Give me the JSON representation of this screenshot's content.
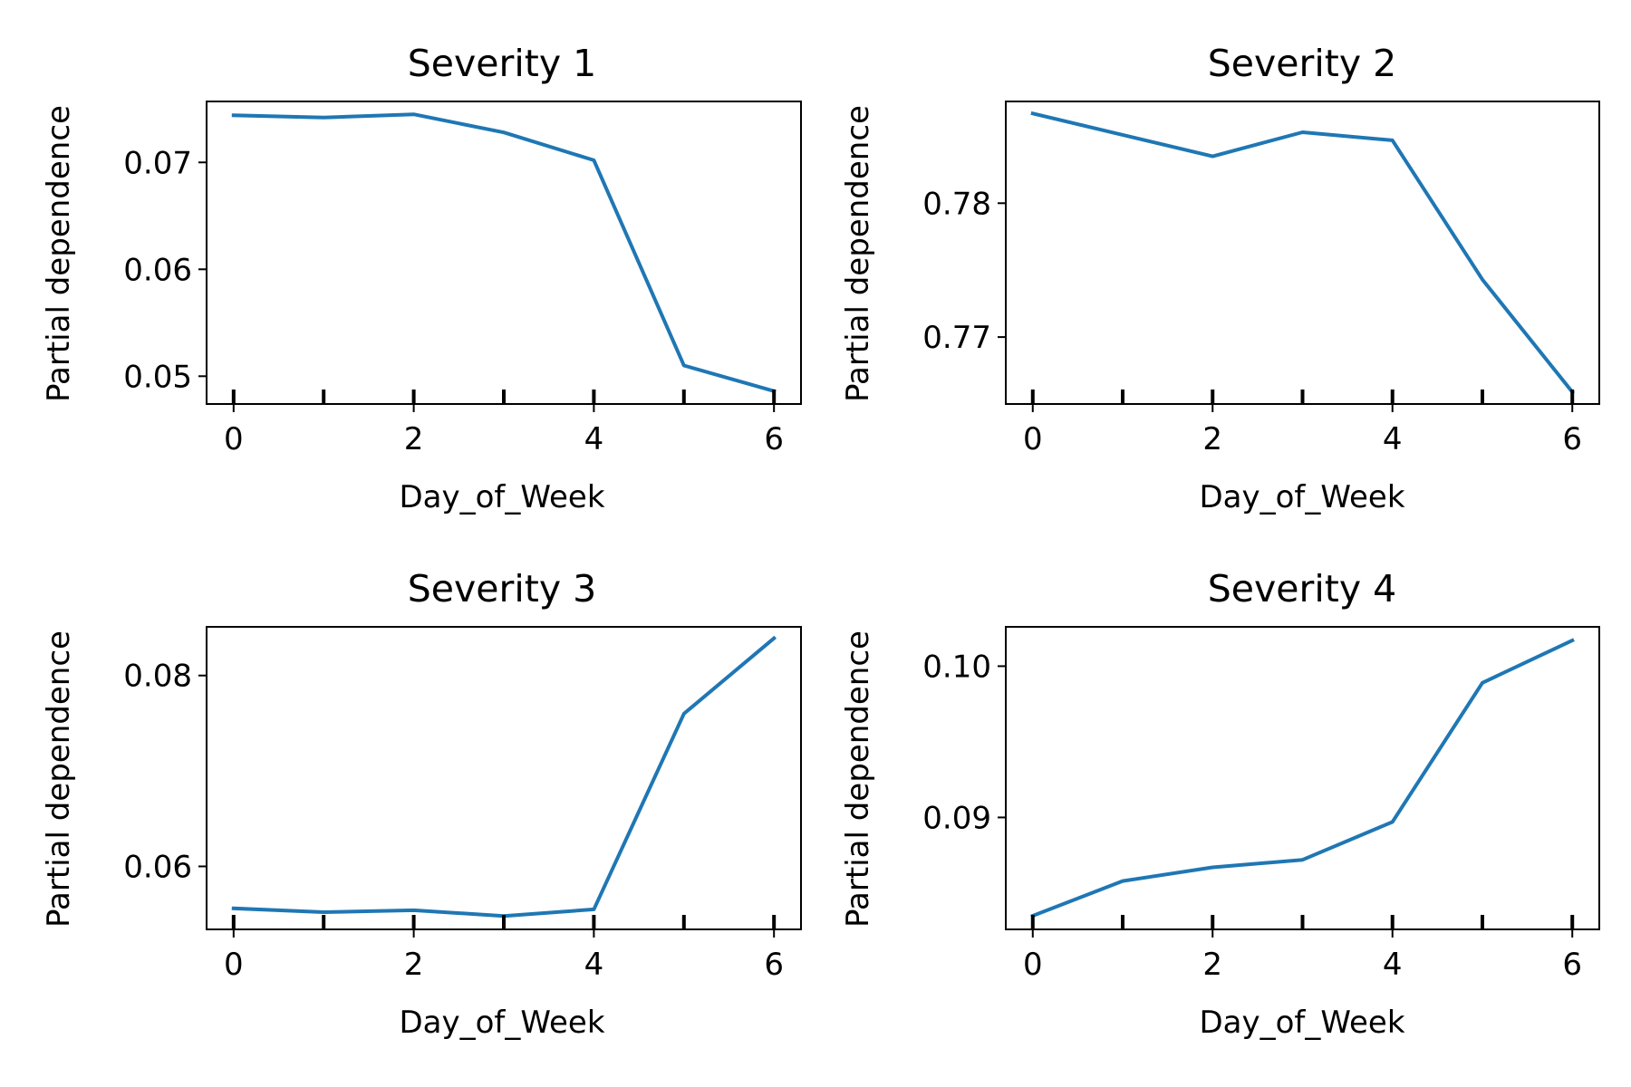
{
  "chart_data": [
    {
      "type": "line",
      "title": "Severity 1",
      "xlabel": "Day_of_Week",
      "ylabel": "Partial dependence",
      "x": [
        0,
        1,
        2,
        3,
        4,
        5,
        6
      ],
      "y": [
        0.0744,
        0.0742,
        0.0745,
        0.0728,
        0.0702,
        0.051,
        0.0486
      ],
      "xlim": [
        -0.3,
        6.3
      ],
      "ylim": [
        0.0474,
        0.0757
      ],
      "xticks": [
        0,
        2,
        4,
        6
      ],
      "xtick_labels": [
        "0",
        "2",
        "4",
        "6"
      ],
      "yticks": [
        0.05,
        0.06,
        0.07
      ],
      "ytick_labels": [
        "0.05",
        "0.06",
        "0.07"
      ],
      "rug": [
        0,
        1,
        2,
        3,
        4,
        5,
        6
      ],
      "color": "#1f77b4",
      "grid": false
    },
    {
      "type": "line",
      "title": "Severity 2",
      "xlabel": "Day_of_Week",
      "ylabel": "Partial dependence",
      "x": [
        0,
        1,
        2,
        3,
        4,
        5,
        6
      ],
      "y": [
        0.7867,
        0.7851,
        0.7835,
        0.7853,
        0.7847,
        0.7743,
        0.7659
      ],
      "xlim": [
        -0.3,
        6.3
      ],
      "ylim": [
        0.765,
        0.7876
      ],
      "xticks": [
        0,
        2,
        4,
        6
      ],
      "xtick_labels": [
        "0",
        "2",
        "4",
        "6"
      ],
      "yticks": [
        0.77,
        0.78
      ],
      "ytick_labels": [
        "0.77",
        "0.78"
      ],
      "rug": [
        0,
        1,
        2,
        3,
        4,
        5,
        6
      ],
      "color": "#1f77b4",
      "grid": false
    },
    {
      "type": "line",
      "title": "Severity 3",
      "xlabel": "Day_of_Week",
      "ylabel": "Partial dependence",
      "x": [
        0,
        1,
        2,
        3,
        4,
        5,
        6
      ],
      "y": [
        0.0556,
        0.0552,
        0.0554,
        0.0548,
        0.0555,
        0.076,
        0.0839
      ],
      "xlim": [
        -0.3,
        6.3
      ],
      "ylim": [
        0.0534,
        0.0851
      ],
      "xticks": [
        0,
        2,
        4,
        6
      ],
      "xtick_labels": [
        "0",
        "2",
        "4",
        "6"
      ],
      "yticks": [
        0.06,
        0.08
      ],
      "ytick_labels": [
        "0.06",
        "0.08"
      ],
      "rug": [
        0,
        1,
        2,
        3,
        4,
        5,
        6
      ],
      "color": "#1f77b4",
      "grid": false
    },
    {
      "type": "line",
      "title": "Severity 4",
      "xlabel": "Day_of_Week",
      "ylabel": "Partial dependence",
      "x": [
        0,
        1,
        2,
        3,
        4,
        5,
        6
      ],
      "y": [
        0.0835,
        0.0858,
        0.0867,
        0.0872,
        0.0897,
        0.0989,
        0.1017
      ],
      "xlim": [
        -0.3,
        6.3
      ],
      "ylim": [
        0.0826,
        0.1026
      ],
      "xticks": [
        0,
        2,
        4,
        6
      ],
      "xtick_labels": [
        "0",
        "2",
        "4",
        "6"
      ],
      "yticks": [
        0.09,
        0.1
      ],
      "ytick_labels": [
        "0.09",
        "0.10"
      ],
      "rug": [
        0,
        1,
        2,
        3,
        4,
        5,
        6
      ],
      "color": "#1f77b4",
      "grid": false
    }
  ]
}
